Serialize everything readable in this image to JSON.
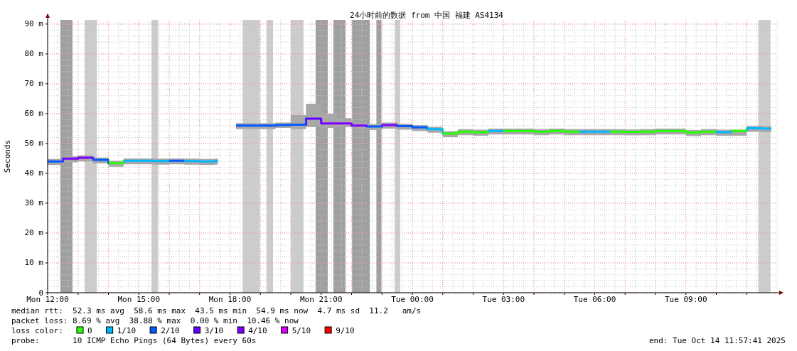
{
  "chart_data": {
    "type": "step",
    "title": "24小时前的数据 from 中国 福建 AS4134",
    "ylabel": "Seconds",
    "legend_title": "loss color:",
    "legend": "bottom",
    "grid": true,
    "line_style": "solid",
    "xlim": [
      "2025-10-13T12:00",
      "2025-10-14T12:00"
    ],
    "ylim": [
      0,
      91.4
    ],
    "xticks": [
      {
        "value": "2025-10-13T12:00",
        "label": "Mon 12:00"
      },
      {
        "value": "2025-10-13T13:00",
        "label": null
      },
      {
        "value": "2025-10-13T14:00",
        "label": null
      },
      {
        "value": "2025-10-13T15:00",
        "label": "Mon 15:00"
      },
      {
        "value": "2025-10-13T16:00",
        "label": null
      },
      {
        "value": "2025-10-13T17:00",
        "label": null
      },
      {
        "value": "2025-10-13T18:00",
        "label": "Mon 18:00"
      },
      {
        "value": "2025-10-13T19:00",
        "label": null
      },
      {
        "value": "2025-10-13T20:00",
        "label": null
      },
      {
        "value": "2025-10-13T21:00",
        "label": "Mon 21:00"
      },
      {
        "value": "2025-10-13T22:00",
        "label": null
      },
      {
        "value": "2025-10-13T23:00",
        "label": null
      },
      {
        "value": "2025-10-14T00:00",
        "label": "Tue 00:00"
      },
      {
        "value": "2025-10-14T01:00",
        "label": null
      },
      {
        "value": "2025-10-14T02:00",
        "label": null
      },
      {
        "value": "2025-10-14T03:00",
        "label": "Tue 03:00"
      },
      {
        "value": "2025-10-14T04:00",
        "label": null
      },
      {
        "value": "2025-10-14T05:00",
        "label": null
      },
      {
        "value": "2025-10-14T06:00",
        "label": "Tue 06:00"
      },
      {
        "value": "2025-10-14T07:00",
        "label": null
      },
      {
        "value": "2025-10-14T08:00",
        "label": null
      },
      {
        "value": "2025-10-14T09:00",
        "label": "Tue 09:00"
      },
      {
        "value": "2025-10-14T10:00",
        "label": null
      },
      {
        "value": "2025-10-14T11:00",
        "label": null
      }
    ],
    "yticks": [
      {
        "value": 0,
        "label": "0"
      },
      {
        "value": 10,
        "label": "10 m"
      },
      {
        "value": 20,
        "label": "20 m"
      },
      {
        "value": 30,
        "label": "30 m"
      },
      {
        "value": 40,
        "label": "40 m"
      },
      {
        "value": 50,
        "label": "50 m"
      },
      {
        "value": 60,
        "label": "60 m"
      },
      {
        "value": 70,
        "label": "70 m"
      },
      {
        "value": 80,
        "label": "80 m"
      },
      {
        "value": 90,
        "label": "90 m"
      }
    ],
    "x": [
      "2025-10-13T12:00",
      "2025-10-13T12:30",
      "2025-10-13T13:00",
      "2025-10-13T13:30",
      "2025-10-13T14:00",
      "2025-10-13T14:30",
      "2025-10-13T15:00",
      "2025-10-13T15:30",
      "2025-10-13T16:00",
      "2025-10-13T16:30",
      "2025-10-13T17:00",
      "2025-10-13T17:30",
      "2025-10-13T17:36",
      "2025-10-13T18:12",
      "2025-10-13T18:30",
      "2025-10-13T19:00",
      "2025-10-13T19:30",
      "2025-10-13T20:00",
      "2025-10-13T20:30",
      "2025-10-13T21:00",
      "2025-10-13T21:30",
      "2025-10-13T22:00",
      "2025-10-13T22:30",
      "2025-10-13T23:00",
      "2025-10-13T23:30",
      "2025-10-14T00:00",
      "2025-10-14T00:30",
      "2025-10-14T01:00",
      "2025-10-14T01:30",
      "2025-10-14T02:00",
      "2025-10-14T02:30",
      "2025-10-14T03:00",
      "2025-10-14T03:30",
      "2025-10-14T04:00",
      "2025-10-14T04:30",
      "2025-10-14T05:00",
      "2025-10-14T05:30",
      "2025-10-14T06:00",
      "2025-10-14T06:30",
      "2025-10-14T07:00",
      "2025-10-14T07:30",
      "2025-10-14T08:00",
      "2025-10-14T08:30",
      "2025-10-14T09:00",
      "2025-10-14T09:30",
      "2025-10-14T10:00",
      "2025-10-14T10:30",
      "2025-10-14T11:00",
      "2025-10-14T11:30",
      "2025-10-14T11:48"
    ],
    "bands": [
      {
        "axis": "x",
        "from": "2025-10-13T12:25",
        "to": "2025-10-13T12:49",
        "color": "#a0a0a0"
      },
      {
        "axis": "x",
        "from": "2025-10-13T13:13",
        "to": "2025-10-13T13:37",
        "color": "#cccccc"
      },
      {
        "axis": "x",
        "from": "2025-10-13T15:25",
        "to": "2025-10-13T15:38",
        "color": "#cccccc"
      },
      {
        "axis": "x",
        "from": "2025-10-13T18:25",
        "to": "2025-10-13T18:59",
        "color": "#cccccc"
      },
      {
        "axis": "x",
        "from": "2025-10-13T19:12",
        "to": "2025-10-13T19:25",
        "color": "#cccccc"
      },
      {
        "axis": "x",
        "from": "2025-10-13T20:00",
        "to": "2025-10-13T20:25",
        "color": "#cccccc"
      },
      {
        "axis": "x",
        "from": "2025-10-13T20:49",
        "to": "2025-10-13T21:13",
        "color": "#a0a0a0"
      },
      {
        "axis": "x",
        "from": "2025-10-13T21:24",
        "to": "2025-10-13T21:48",
        "color": "#a0a0a0"
      },
      {
        "axis": "x",
        "from": "2025-10-13T22:01",
        "to": "2025-10-13T22:36",
        "color": "#a0a0a0"
      },
      {
        "axis": "x",
        "from": "2025-10-13T22:49",
        "to": "2025-10-13T22:59",
        "color": "#a0a0a0"
      },
      {
        "axis": "x",
        "from": "2025-10-13T23:25",
        "to": "2025-10-13T23:36",
        "color": "#cccccc"
      },
      {
        "axis": "x",
        "from": "2025-10-14T11:23",
        "to": "2025-10-14T11:47",
        "color": "#cccccc"
      }
    ],
    "series": [
      {
        "color": "#a8a8a8",
        "values": [
          44.0,
          44.9,
          45.2,
          44.5,
          43.4,
          44.2,
          44.2,
          44.1,
          44.2,
          44.1,
          44.0,
          44.1,
          null,
          56.0,
          56.0,
          56.0,
          56.2,
          56.3,
          58.3,
          56.7,
          56.7,
          56.0,
          55.7,
          56.2,
          55.8,
          55.4,
          54.8,
          53.3,
          54.0,
          53.8,
          54.2,
          54.2,
          54.2,
          54.0,
          54.2,
          54.0,
          54.0,
          54.0,
          54.0,
          53.9,
          54.0,
          54.2,
          54.2,
          53.7,
          54.0,
          53.8,
          54.2,
          55.1,
          55.0,
          55.0
        ],
        "colors": [
          "#0059ff",
          "#7e00ff",
          "#7e00ff",
          "#0059ff",
          "#26ff00",
          "#00b8ff",
          "#00b8ff",
          "#00b8ff",
          "#0059ff",
          "#00b8ff",
          "#00b8ff",
          "#00b8ff",
          null,
          "#0059ff",
          "#0059ff",
          "#0059ff",
          "#0059ff",
          "#0059ff",
          "#5e00ff",
          "#7e00ff",
          "#7e00ff",
          "#7e00ff",
          "#0059ff",
          "#7e00ff",
          "#0059ff",
          "#0059ff",
          "#00b8ff",
          "#26ff00",
          "#26ff00",
          "#26ff00",
          "#00b8ff",
          "#26ff00",
          "#26ff00",
          "#26ff00",
          "#26ff00",
          "#26ff00",
          "#00b8ff",
          "#00b8ff",
          "#26ff00",
          "#26ff00",
          "#26ff00",
          "#26ff00",
          "#26ff00",
          "#26ff00",
          "#26ff00",
          "#00b8ff",
          "#26ff00",
          "#00b8ff",
          "#00b8ff",
          "#0059ff"
        ],
        "lower": [
          42.8,
          43.7,
          44.0,
          43.3,
          42.2,
          43.0,
          43.0,
          42.9,
          43.0,
          42.9,
          42.8,
          42.9,
          null,
          54.8,
          54.8,
          54.8,
          55.2,
          54.8,
          55.5,
          55.2,
          55.5,
          55.0,
          54.5,
          55.0,
          54.6,
          54.2,
          53.6,
          52.1,
          52.8,
          52.6,
          53.0,
          53.0,
          53.0,
          52.8,
          53.0,
          52.8,
          52.8,
          52.8,
          52.8,
          52.7,
          52.8,
          53.0,
          53.0,
          52.5,
          52.8,
          52.6,
          52.6,
          53.9,
          53.8,
          53.8
        ],
        "upper": [
          44.8,
          45.7,
          46.0,
          45.3,
          44.2,
          45.0,
          45.0,
          44.9,
          45.0,
          44.9,
          44.8,
          44.9,
          null,
          56.8,
          56.8,
          56.8,
          57.0,
          59.5,
          63.3,
          60.0,
          58.5,
          57.0,
          56.5,
          57.0,
          56.6,
          56.2,
          55.6,
          54.1,
          54.8,
          54.6,
          55.0,
          55.0,
          55.0,
          54.8,
          55.0,
          54.8,
          54.8,
          54.8,
          54.8,
          54.7,
          54.8,
          55.0,
          55.0,
          54.5,
          54.8,
          54.6,
          54.6,
          55.9,
          55.8,
          55.8
        ]
      },
      {
        "name": "0",
        "color": "#26ff00",
        "values": [
          null,
          null,
          null,
          null,
          null,
          null,
          null,
          null,
          null,
          null,
          null,
          null,
          null,
          null,
          null,
          null,
          null,
          null,
          null,
          null,
          null,
          null,
          null,
          null,
          null,
          null,
          null,
          null,
          null,
          null,
          null,
          null,
          null,
          null,
          null,
          null,
          null,
          null,
          null,
          null,
          null,
          null,
          null,
          null,
          null,
          null,
          null,
          null,
          null,
          null
        ]
      },
      {
        "name": "1/10",
        "color": "#00b8ff",
        "values": [
          null,
          null,
          null,
          null,
          null,
          null,
          null,
          null,
          null,
          null,
          null,
          null,
          null,
          null,
          null,
          null,
          null,
          null,
          null,
          null,
          null,
          null,
          null,
          null,
          null,
          null,
          null,
          null,
          null,
          null,
          null,
          null,
          null,
          null,
          null,
          null,
          null,
          null,
          null,
          null,
          null,
          null,
          null,
          null,
          null,
          null,
          null,
          null,
          null,
          null
        ]
      },
      {
        "name": "2/10",
        "color": "#0059ff",
        "values": [
          null,
          null,
          null,
          null,
          null,
          null,
          null,
          null,
          null,
          null,
          null,
          null,
          null,
          null,
          null,
          null,
          null,
          null,
          null,
          null,
          null,
          null,
          null,
          null,
          null,
          null,
          null,
          null,
          null,
          null,
          null,
          null,
          null,
          null,
          null,
          null,
          null,
          null,
          null,
          null,
          null,
          null,
          null,
          null,
          null,
          null,
          null,
          null,
          null,
          null
        ]
      },
      {
        "name": "3/10",
        "color": "#5e00ff",
        "values": [
          null,
          null,
          null,
          null,
          null,
          null,
          null,
          null,
          null,
          null,
          null,
          null,
          null,
          null,
          null,
          null,
          null,
          null,
          null,
          null,
          null,
          null,
          null,
          null,
          null,
          null,
          null,
          null,
          null,
          null,
          null,
          null,
          null,
          null,
          null,
          null,
          null,
          null,
          null,
          null,
          null,
          null,
          null,
          null,
          null,
          null,
          null,
          null,
          null,
          null
        ]
      },
      {
        "name": "4/10",
        "color": "#7e00ff",
        "values": [
          null,
          null,
          null,
          null,
          null,
          null,
          null,
          null,
          null,
          null,
          null,
          null,
          null,
          null,
          null,
          null,
          null,
          null,
          null,
          null,
          null,
          null,
          null,
          null,
          null,
          null,
          null,
          null,
          null,
          null,
          null,
          null,
          null,
          null,
          null,
          null,
          null,
          null,
          null,
          null,
          null,
          null,
          null,
          null,
          null,
          null,
          null,
          null,
          null,
          null
        ]
      },
      {
        "name": "5/10",
        "color": "#dd00ff",
        "values": [
          null,
          null,
          null,
          null,
          null,
          null,
          null,
          null,
          null,
          null,
          null,
          null,
          null,
          null,
          null,
          null,
          null,
          null,
          null,
          null,
          null,
          null,
          null,
          null,
          null,
          null,
          null,
          null,
          null,
          null,
          null,
          null,
          null,
          null,
          null,
          null,
          null,
          null,
          null,
          null,
          null,
          null,
          null,
          null,
          null,
          null,
          null,
          null,
          null,
          null
        ]
      },
      {
        "name": "9/10",
        "color": "#ff0000",
        "values": [
          null,
          null,
          null,
          null,
          null,
          null,
          null,
          null,
          null,
          null,
          null,
          null,
          null,
          null,
          null,
          null,
          null,
          null,
          null,
          null,
          null,
          null,
          null,
          null,
          null,
          null,
          null,
          null,
          null,
          null,
          null,
          null,
          null,
          null,
          null,
          null,
          null,
          null,
          null,
          null,
          null,
          null,
          null,
          null,
          null,
          null,
          null,
          null,
          null,
          null
        ]
      }
    ],
    "annotations": [
      "median rtt:  52.3 ms avg  58.6 ms max  43.5 ms min  54.9 ms now  4.7 ms sd  11.2   am/s",
      "packet loss: 8.69 % avg  38.88 % max  0.00 % min  10.46 % now",
      "probe:       10 ICMP Echo Pings (64 Bytes) every 60s",
      "end: Tue Oct 14 11:57:41 2025"
    ]
  }
}
